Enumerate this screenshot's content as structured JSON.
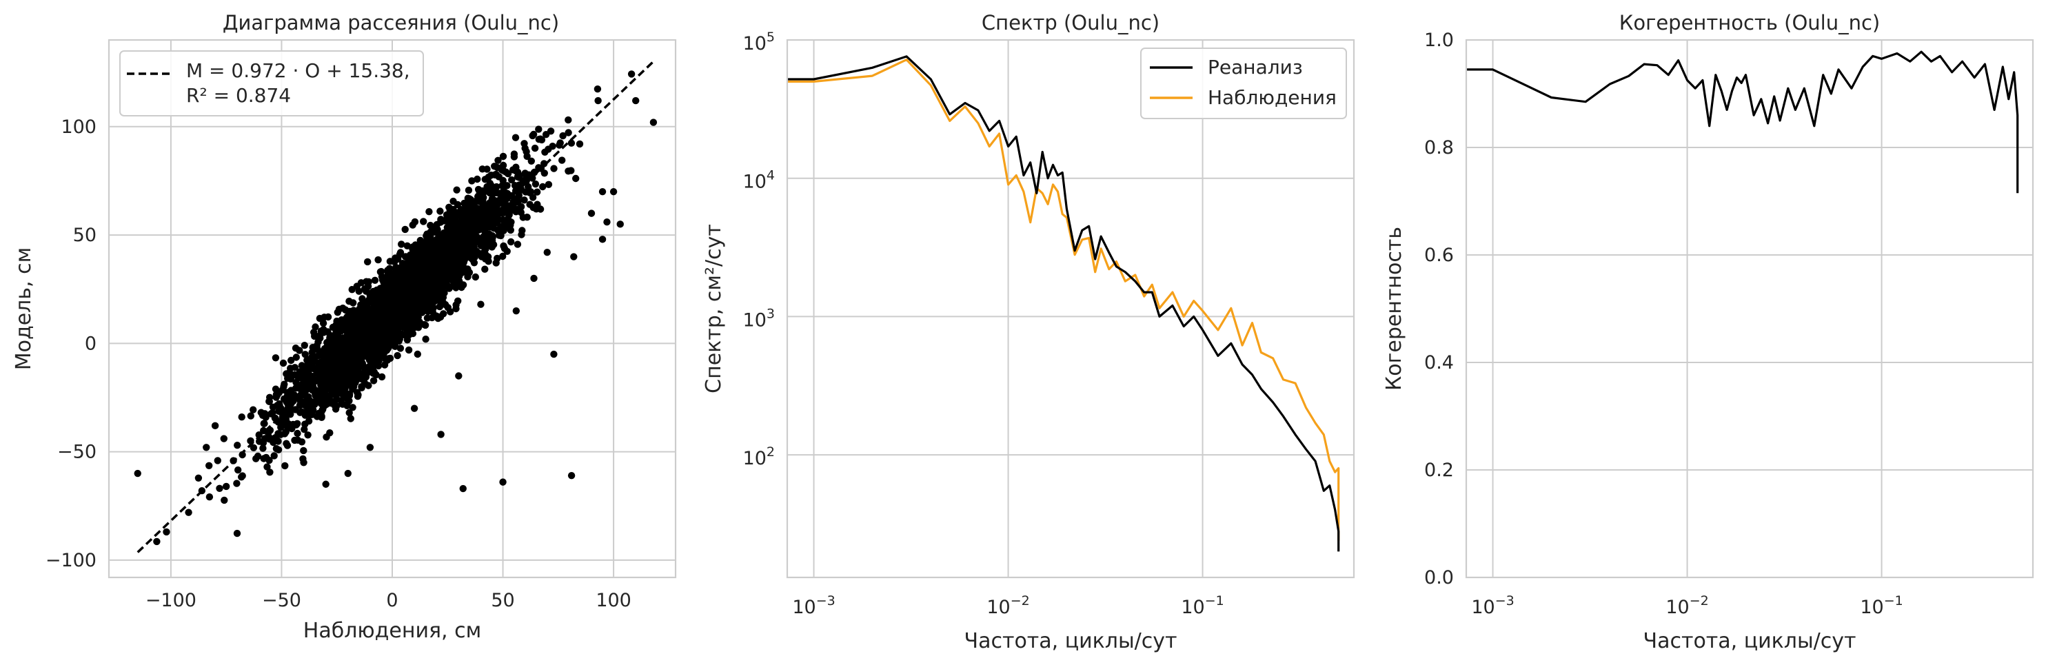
{
  "chart_data": [
    {
      "type": "scatter",
      "title": "Диаграмма рассеяния (Oulu_nc)",
      "xlabel": "Наблюдения, см",
      "ylabel": "Модель, см",
      "xlim": [
        -128,
        128
      ],
      "ylim": [
        -108,
        140
      ],
      "xticks": [
        -100,
        -50,
        0,
        50,
        100
      ],
      "yticks": [
        -100,
        -50,
        0,
        50,
        100
      ],
      "xtick_labels": [
        "−100",
        "−50",
        "0",
        "50",
        "100"
      ],
      "ytick_labels": [
        "−100",
        "−50",
        "0",
        "50",
        "100"
      ],
      "grid": true,
      "legend": {
        "position": "top-left",
        "entries": [
          "M = 0.972 · O + 15.38,",
          "R² = 0.874"
        ]
      },
      "fit_line": {
        "slope": 0.972,
        "intercept": 15.38,
        "x_range": [
          -115,
          118
        ],
        "style": "dashed",
        "color": "#000000"
      },
      "point_color": "#000000",
      "approx_points": 3000,
      "spread_sd": 10,
      "outliers": [
        [
          -115,
          -60
        ],
        [
          -102,
          -87
        ],
        [
          -92,
          -78
        ],
        [
          -86,
          -68
        ],
        [
          -84,
          -48
        ],
        [
          -80,
          -38
        ],
        [
          -75,
          -66
        ],
        [
          -70,
          -47
        ],
        [
          -64,
          -45
        ],
        [
          -58,
          -37
        ],
        [
          -52,
          -24
        ],
        [
          -48,
          -35
        ],
        [
          -20,
          -60
        ],
        [
          -10,
          -48
        ],
        [
          22,
          -42
        ],
        [
          32,
          -67
        ],
        [
          50,
          -64
        ],
        [
          73,
          -5
        ],
        [
          81,
          -61
        ],
        [
          64,
          30
        ],
        [
          70,
          42
        ],
        [
          90,
          60
        ],
        [
          95,
          48
        ],
        [
          97,
          56
        ],
        [
          103,
          55
        ],
        [
          110,
          112
        ],
        [
          118,
          102
        ],
        [
          93,
          112
        ],
        [
          95,
          70
        ],
        [
          100,
          70
        ],
        [
          82,
          40
        ],
        [
          60,
          90
        ],
        [
          10,
          -30
        ],
        [
          40,
          18
        ],
        [
          -30,
          -65
        ],
        [
          -40,
          -55
        ],
        [
          56,
          15
        ],
        [
          30,
          -15
        ]
      ]
    },
    {
      "type": "line",
      "title": "Спектр (Oulu_nc)",
      "xlabel": "Частота, циклы/сут",
      "ylabel": "Спектр, см²/сут",
      "xscale": "log",
      "yscale": "log",
      "xlim": [
        0.00073,
        0.6
      ],
      "ylim": [
        13,
        100000
      ],
      "xtick_values": [
        0.001,
        0.01,
        0.1
      ],
      "xtick_labels": [
        {
          "base": "10",
          "exp": "−3"
        },
        {
          "base": "10",
          "exp": "−2"
        },
        {
          "base": "10",
          "exp": "−1"
        }
      ],
      "ytick_values": [
        100,
        1000,
        10000,
        100000
      ],
      "ytick_labels": [
        {
          "base": "10",
          "exp": "2"
        },
        {
          "base": "10",
          "exp": "3"
        },
        {
          "base": "10",
          "exp": "4"
        },
        {
          "base": "10",
          "exp": "5"
        }
      ],
      "grid": true,
      "legend": {
        "position": "top-right"
      },
      "series": [
        {
          "name": "Реанализ",
          "color": "#000000",
          "x": [
            0.0006,
            0.001,
            0.002,
            0.003,
            0.004,
            0.005,
            0.006,
            0.007,
            0.008,
            0.009,
            0.01,
            0.011,
            0.012,
            0.013,
            0.014,
            0.015,
            0.016,
            0.017,
            0.018,
            0.019,
            0.02,
            0.022,
            0.024,
            0.026,
            0.028,
            0.03,
            0.033,
            0.036,
            0.04,
            0.045,
            0.05,
            0.055,
            0.06,
            0.07,
            0.08,
            0.09,
            0.1,
            0.12,
            0.14,
            0.16,
            0.18,
            0.2,
            0.23,
            0.26,
            0.3,
            0.34,
            0.38,
            0.42,
            0.45,
            0.48,
            0.5,
            0.5
          ],
          "y": [
            52000,
            52000,
            63000,
            76000,
            52000,
            29000,
            35000,
            31000,
            22000,
            26000,
            17000,
            20000,
            10500,
            13000,
            7800,
            15500,
            10000,
            12500,
            10500,
            11000,
            6000,
            3000,
            4200,
            4500,
            2600,
            3800,
            2900,
            2300,
            2100,
            1800,
            1500,
            1500,
            1000,
            1200,
            850,
            1000,
            800,
            520,
            640,
            450,
            380,
            300,
            240,
            190,
            140,
            110,
            90,
            55,
            60,
            40,
            28,
            20
          ]
        },
        {
          "name": "Наблюдения",
          "color": "#f5a01a",
          "x": [
            0.0006,
            0.001,
            0.002,
            0.003,
            0.004,
            0.005,
            0.006,
            0.007,
            0.008,
            0.009,
            0.01,
            0.011,
            0.012,
            0.013,
            0.014,
            0.015,
            0.016,
            0.017,
            0.018,
            0.019,
            0.02,
            0.022,
            0.024,
            0.026,
            0.028,
            0.03,
            0.033,
            0.036,
            0.04,
            0.045,
            0.05,
            0.055,
            0.06,
            0.07,
            0.08,
            0.09,
            0.1,
            0.12,
            0.14,
            0.16,
            0.18,
            0.2,
            0.23,
            0.26,
            0.3,
            0.34,
            0.38,
            0.42,
            0.45,
            0.48,
            0.5,
            0.5
          ],
          "y": [
            50000,
            50000,
            55000,
            72000,
            47000,
            26000,
            33000,
            25000,
            17000,
            21000,
            9000,
            10500,
            8000,
            4800,
            8500,
            7800,
            6500,
            9000,
            8000,
            5500,
            5200,
            2800,
            3600,
            3700,
            2100,
            3100,
            2200,
            2500,
            1800,
            2000,
            1400,
            1700,
            1150,
            1500,
            1000,
            1300,
            1100,
            800,
            1150,
            620,
            900,
            550,
            500,
            350,
            330,
            220,
            170,
            140,
            90,
            75,
            80,
            24
          ]
        }
      ]
    },
    {
      "type": "line",
      "title": "Когерентность (Oulu_nc)",
      "xlabel": "Частота, циклы/сут",
      "ylabel": "Когерентность",
      "xscale": "log",
      "xlim": [
        0.00073,
        0.6
      ],
      "ylim": [
        0,
        1
      ],
      "xtick_values": [
        0.001,
        0.01,
        0.1
      ],
      "xtick_labels": [
        {
          "base": "10",
          "exp": "−3"
        },
        {
          "base": "10",
          "exp": "−2"
        },
        {
          "base": "10",
          "exp": "−1"
        }
      ],
      "ytick_values": [
        0,
        0.2,
        0.4,
        0.6,
        0.8,
        1.0
      ],
      "ytick_labels": [
        "0.0",
        "0.2",
        "0.4",
        "0.6",
        "0.8",
        "1.0"
      ],
      "grid": true,
      "series": [
        {
          "color": "#000000",
          "x": [
            0.0006,
            0.001,
            0.002,
            0.003,
            0.004,
            0.005,
            0.006,
            0.007,
            0.008,
            0.009,
            0.01,
            0.011,
            0.012,
            0.013,
            0.014,
            0.015,
            0.016,
            0.017,
            0.018,
            0.019,
            0.02,
            0.022,
            0.024,
            0.026,
            0.028,
            0.03,
            0.033,
            0.036,
            0.04,
            0.045,
            0.05,
            0.055,
            0.06,
            0.07,
            0.08,
            0.09,
            0.1,
            0.12,
            0.14,
            0.16,
            0.18,
            0.2,
            0.23,
            0.26,
            0.3,
            0.34,
            0.38,
            0.42,
            0.45,
            0.48,
            0.5,
            0.5
          ],
          "y": [
            0.945,
            0.945,
            0.893,
            0.885,
            0.918,
            0.933,
            0.955,
            0.953,
            0.935,
            0.962,
            0.925,
            0.91,
            0.925,
            0.84,
            0.935,
            0.905,
            0.87,
            0.905,
            0.93,
            0.92,
            0.935,
            0.86,
            0.89,
            0.845,
            0.895,
            0.85,
            0.91,
            0.87,
            0.91,
            0.84,
            0.935,
            0.9,
            0.945,
            0.91,
            0.95,
            0.97,
            0.965,
            0.975,
            0.96,
            0.978,
            0.96,
            0.97,
            0.94,
            0.96,
            0.93,
            0.955,
            0.87,
            0.95,
            0.89,
            0.94,
            0.86,
            0.715
          ]
        }
      ]
    }
  ]
}
